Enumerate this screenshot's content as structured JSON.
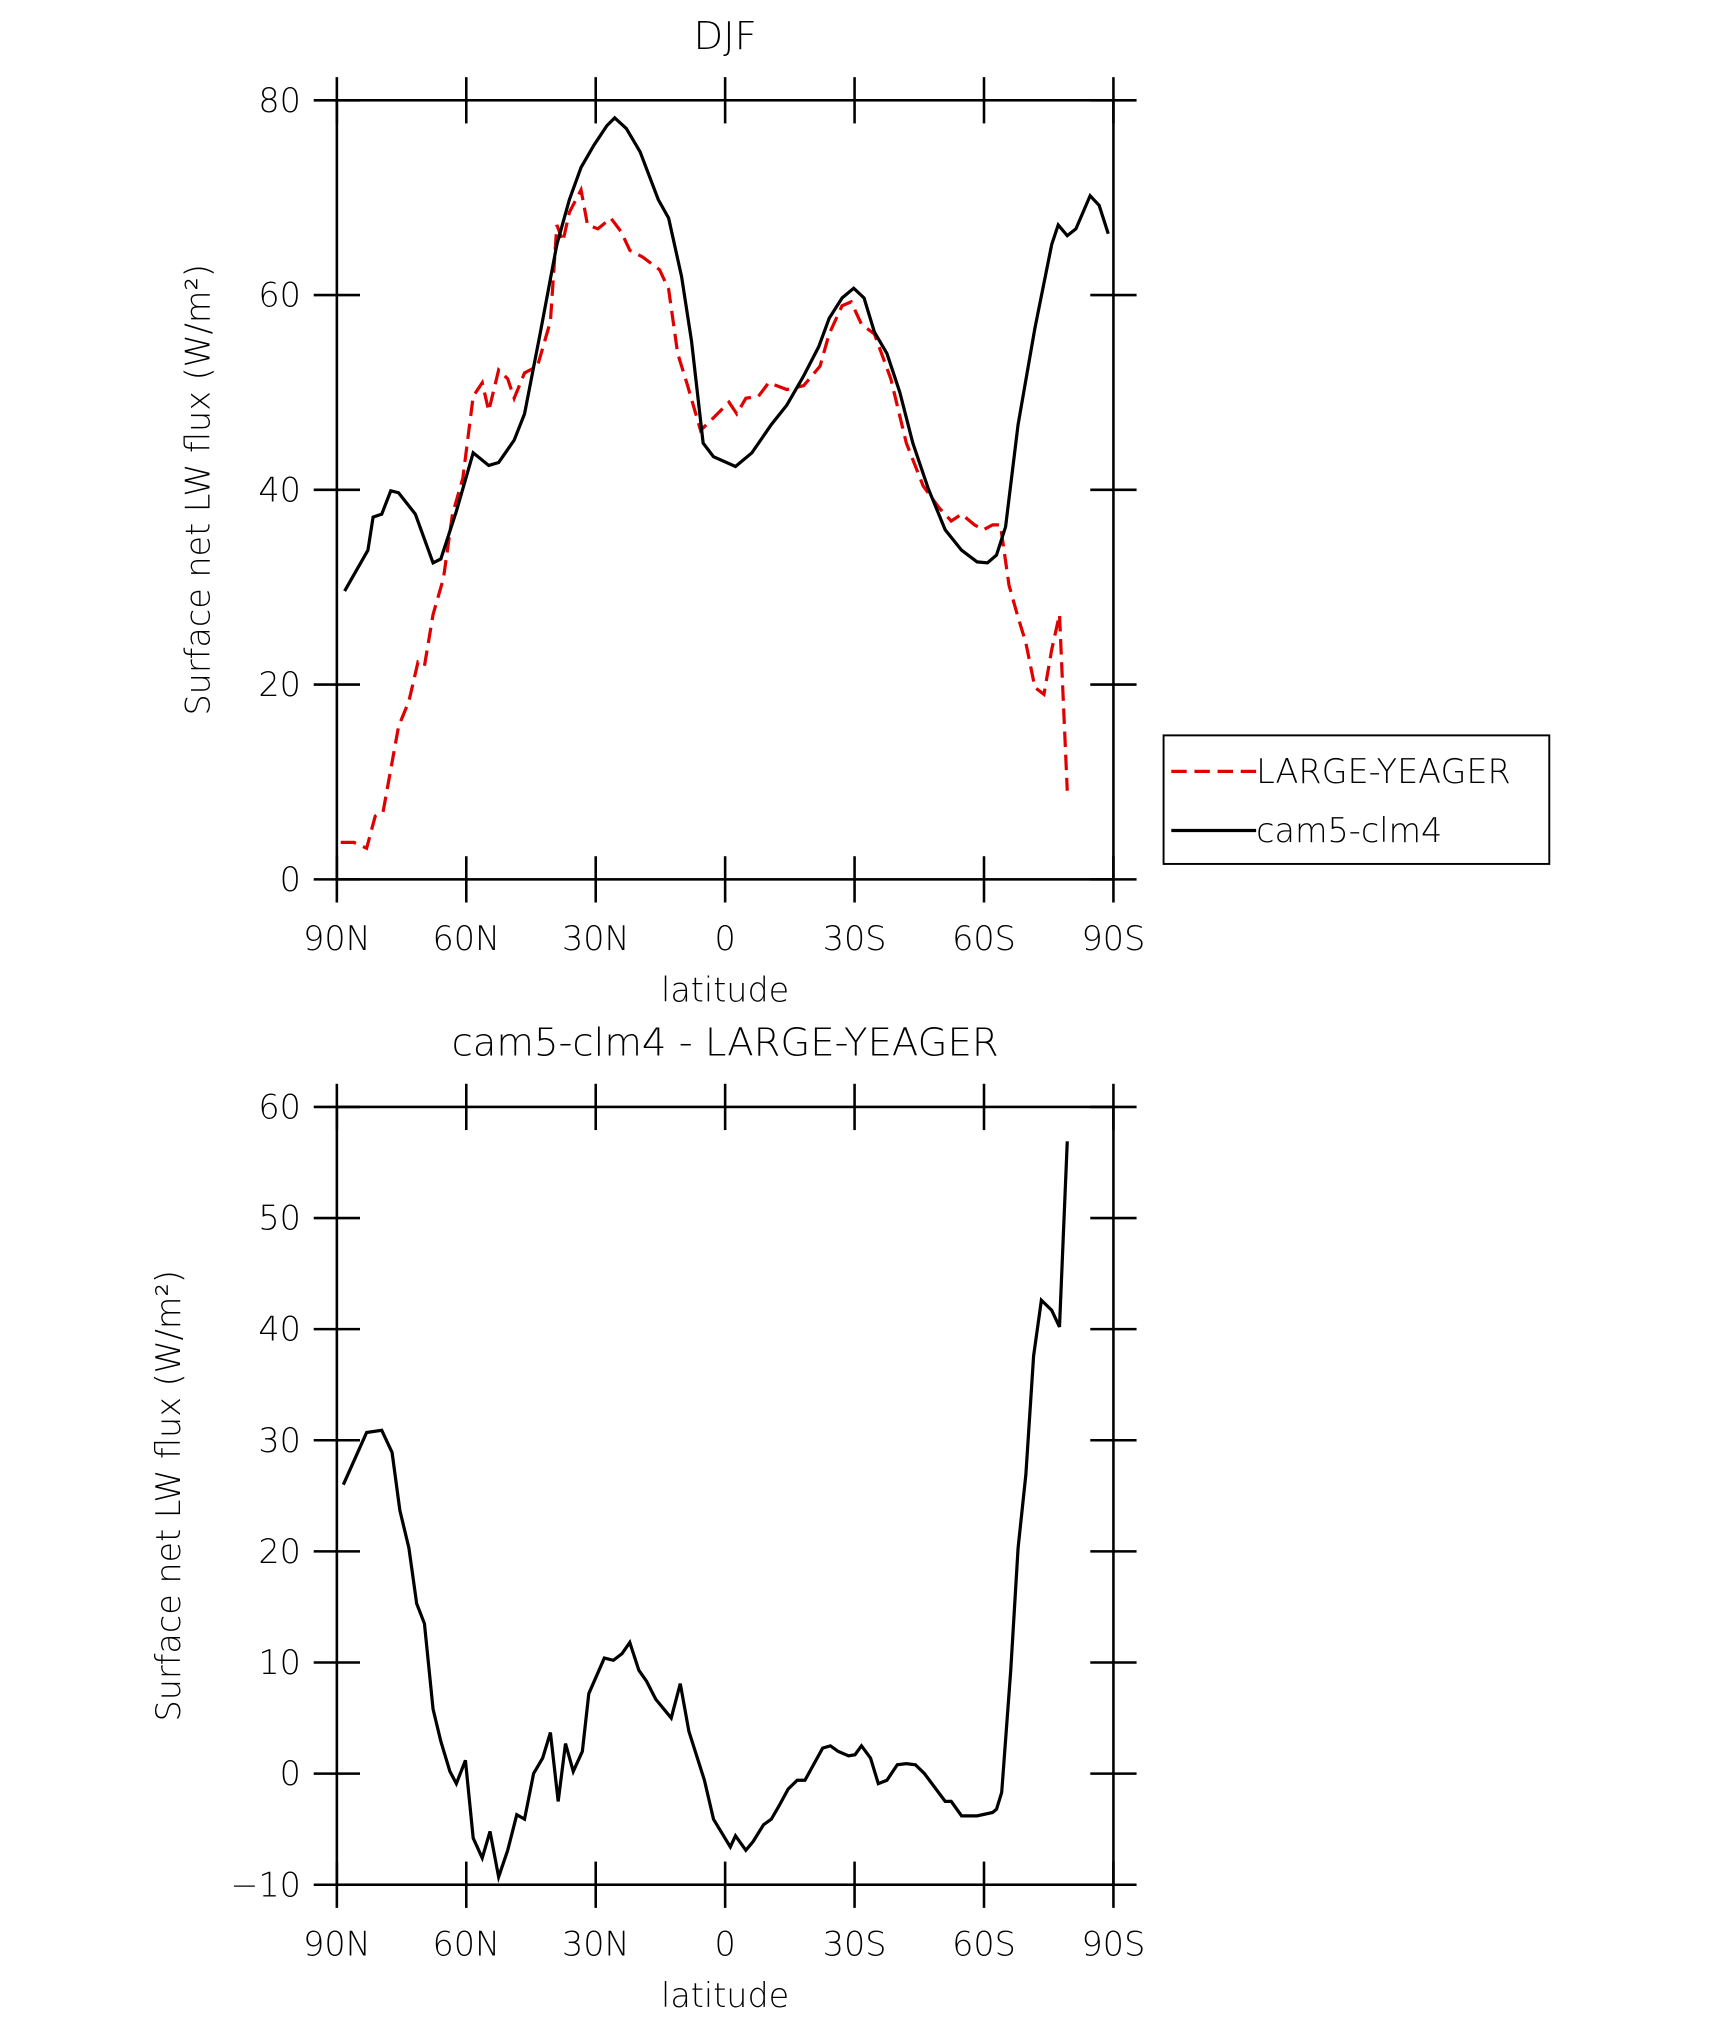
{
  "chart_data": [
    {
      "type": "line",
      "title": "DJF",
      "xlabel": "latitude",
      "ylabel": "Surface net LW flux (W/m²)",
      "xlim": [
        90,
        -90
      ],
      "xticks": [
        {
          "value": 90,
          "label": "90N"
        },
        {
          "value": 60,
          "label": "60N"
        },
        {
          "value": 30,
          "label": "30N"
        },
        0,
        {
          "value": -30,
          "label": "30S"
        },
        {
          "value": -60,
          "label": "60S"
        },
        {
          "value": -90,
          "label": "90S"
        }
      ],
      "ylim": [
        0,
        80
      ],
      "yticks": [
        0,
        20,
        40,
        60,
        80
      ],
      "legend": "right",
      "series": [
        {
          "name": "LARGE-YEAGER",
          "color": "#e00000",
          "dashed": true,
          "x": [
            89.1,
            86.1,
            83.1,
            81.1,
            79.3,
            75.7,
            73.3,
            71.2,
            69.7,
            67.7,
            65.3,
            63.2,
            60.8,
            58.4,
            56.3,
            54.8,
            52.5,
            50.4,
            48.9,
            46.5,
            43.5,
            40.5,
            39.0,
            37.6,
            36.1,
            33.4,
            31.9,
            29.5,
            26.5,
            24.1,
            22.1,
            19.1,
            15.2,
            13.1,
            11.0,
            8.7,
            5.7,
            2.7,
            -0.9,
            -2.7,
            -4.8,
            -7.7,
            -10.1,
            -14.3,
            -18.2,
            -22.0,
            -24.1,
            -27.1,
            -29.2,
            -31.6,
            -34.6,
            -38.4,
            -42.0,
            -45.9,
            -49.5,
            -52.4,
            -54.8,
            -57.8,
            -59.9,
            -62.0,
            -63.8,
            -65.8,
            -67.9,
            -69.7,
            -71.8,
            -73.9,
            -75.7,
            -77.5,
            -79.3
          ],
          "values": [
            3.8,
            3.8,
            3.2,
            6.5,
            6.9,
            15.7,
            18.3,
            22.3,
            21.9,
            27.2,
            30.9,
            37.5,
            41.2,
            49.6,
            51.0,
            48.1,
            52.3,
            51.4,
            49.4,
            52.0,
            52.7,
            57.3,
            67.2,
            65.5,
            68.5,
            70.8,
            67.2,
            66.8,
            67.9,
            66.5,
            64.6,
            63.9,
            62.6,
            60.6,
            54.0,
            50.7,
            46.1,
            47.4,
            49.0,
            47.8,
            49.4,
            49.6,
            51.0,
            50.3,
            50.7,
            52.7,
            56.0,
            58.9,
            59.3,
            57.0,
            56.0,
            51.4,
            44.8,
            40.4,
            38.2,
            36.8,
            37.5,
            36.4,
            35.9,
            36.4,
            36.4,
            30.2,
            26.9,
            24.3,
            19.7,
            19.0,
            23.6,
            27.2,
            9.1
          ]
        },
        {
          "name": "cam5-clm4",
          "color": "#000000",
          "dashed": false,
          "x": [
            88.2,
            82.8,
            81.6,
            79.6,
            77.5,
            75.7,
            71.8,
            67.7,
            65.9,
            62.3,
            58.4,
            54.8,
            52.5,
            48.9,
            46.5,
            42.9,
            39.0,
            36.1,
            33.4,
            30.4,
            27.4,
            25.6,
            22.9,
            19.7,
            15.5,
            13.1,
            10.1,
            7.8,
            5.1,
            2.7,
            -2.4,
            -6.2,
            -10.7,
            -14.3,
            -18.2,
            -21.7,
            -24.1,
            -27.1,
            -29.8,
            -32.2,
            -34.6,
            -37.5,
            -40.5,
            -43.5,
            -47.1,
            -51.0,
            -54.8,
            -58.4,
            -60.8,
            -62.9,
            -65.0,
            -67.9,
            -71.8,
            -75.7,
            -77.2,
            -79.3,
            -81.3,
            -84.6,
            -86.7,
            -88.8
          ],
          "values": [
            29.6,
            33.8,
            37.2,
            37.5,
            39.9,
            39.7,
            37.5,
            32.5,
            32.9,
            37.8,
            43.8,
            42.5,
            42.8,
            45.1,
            47.8,
            56.0,
            65.2,
            69.8,
            73.1,
            75.4,
            77.4,
            78.2,
            77.1,
            74.7,
            69.8,
            67.9,
            61.9,
            55.3,
            44.8,
            43.4,
            42.4,
            43.8,
            46.7,
            48.7,
            51.7,
            54.7,
            57.6,
            59.7,
            60.7,
            59.7,
            56.2,
            54.0,
            50.0,
            44.8,
            40.1,
            35.9,
            33.8,
            32.6,
            32.5,
            33.3,
            36.2,
            46.7,
            56.6,
            65.2,
            67.2,
            66.1,
            66.8,
            70.2,
            69.2,
            66.3
          ]
        }
      ]
    },
    {
      "type": "line",
      "title": "cam5-clm4 - LARGE-YEAGER",
      "xlabel": "latitude",
      "ylabel": "Surface net LW flux (W/m²)",
      "xlim": [
        90,
        -90
      ],
      "xticks": [
        {
          "value": 90,
          "label": "90N"
        },
        {
          "value": 60,
          "label": "60N"
        },
        {
          "value": 30,
          "label": "30N"
        },
        0,
        {
          "value": -30,
          "label": "30S"
        },
        {
          "value": -60,
          "label": "60S"
        },
        {
          "value": -90,
          "label": "90S"
        }
      ],
      "ylim": [
        -10,
        60
      ],
      "yticks": [
        {
          "value": -10,
          "label": "−10"
        },
        0,
        10,
        20,
        30,
        40,
        50,
        60
      ],
      "color": "#000000",
      "x": [
        88.5,
        83.1,
        79.6,
        77.2,
        75.4,
        73.3,
        71.5,
        69.7,
        67.7,
        65.9,
        63.8,
        62.3,
        60.2,
        58.4,
        56.3,
        54.5,
        52.5,
        50.4,
        48.3,
        46.5,
        44.4,
        42.3,
        40.5,
        38.7,
        37.0,
        35.2,
        33.1,
        31.6,
        28.0,
        25.9,
        23.9,
        22.1,
        20.0,
        18.2,
        16.1,
        12.5,
        10.4,
        8.4,
        4.8,
        2.7,
        -1.2,
        -2.4,
        -4.8,
        -6.5,
        -8.9,
        -10.7,
        -12.5,
        -14.6,
        -16.7,
        -18.5,
        -22.6,
        -24.4,
        -26.2,
        -28.6,
        -30.1,
        -31.6,
        -33.7,
        -35.5,
        -37.5,
        -39.9,
        -42.0,
        -44.1,
        -46.2,
        -51.0,
        -52.4,
        -54.8,
        -58.4,
        -62.0,
        -62.9,
        -64.1,
        -66.2,
        -67.9,
        -69.7,
        -71.5,
        -73.3,
        -75.7,
        -77.5,
        -79.3
      ],
      "values": [
        26.0,
        30.7,
        30.9,
        28.9,
        23.7,
        20.3,
        15.3,
        13.5,
        5.8,
        2.9,
        0.2,
        -0.9,
        1.2,
        -5.8,
        -7.6,
        -5.2,
        -9.3,
        -6.9,
        -3.7,
        -4.1,
        0,
        1.4,
        3.7,
        -2.5,
        2.7,
        0.2,
        2.0,
        7.2,
        10.4,
        10.2,
        10.8,
        11.8,
        9.3,
        8.3,
        6.7,
        5.0,
        8.1,
        3.8,
        -0.6,
        -4.1,
        -6.6,
        -5.6,
        -6.9,
        -6.1,
        -4.6,
        -4.1,
        -2.9,
        -1.4,
        -0.6,
        -0.6,
        2.3,
        2.5,
        2.0,
        1.6,
        1.7,
        2.5,
        1.4,
        -0.9,
        -0.6,
        0.8,
        0.9,
        0.8,
        0,
        -2.5,
        -2.5,
        -3.8,
        -3.8,
        -3.5,
        -3.2,
        -1.7,
        9.3,
        20.3,
        26.9,
        37.6,
        42.6,
        41.7,
        40.2,
        56.9
      ]
    }
  ]
}
